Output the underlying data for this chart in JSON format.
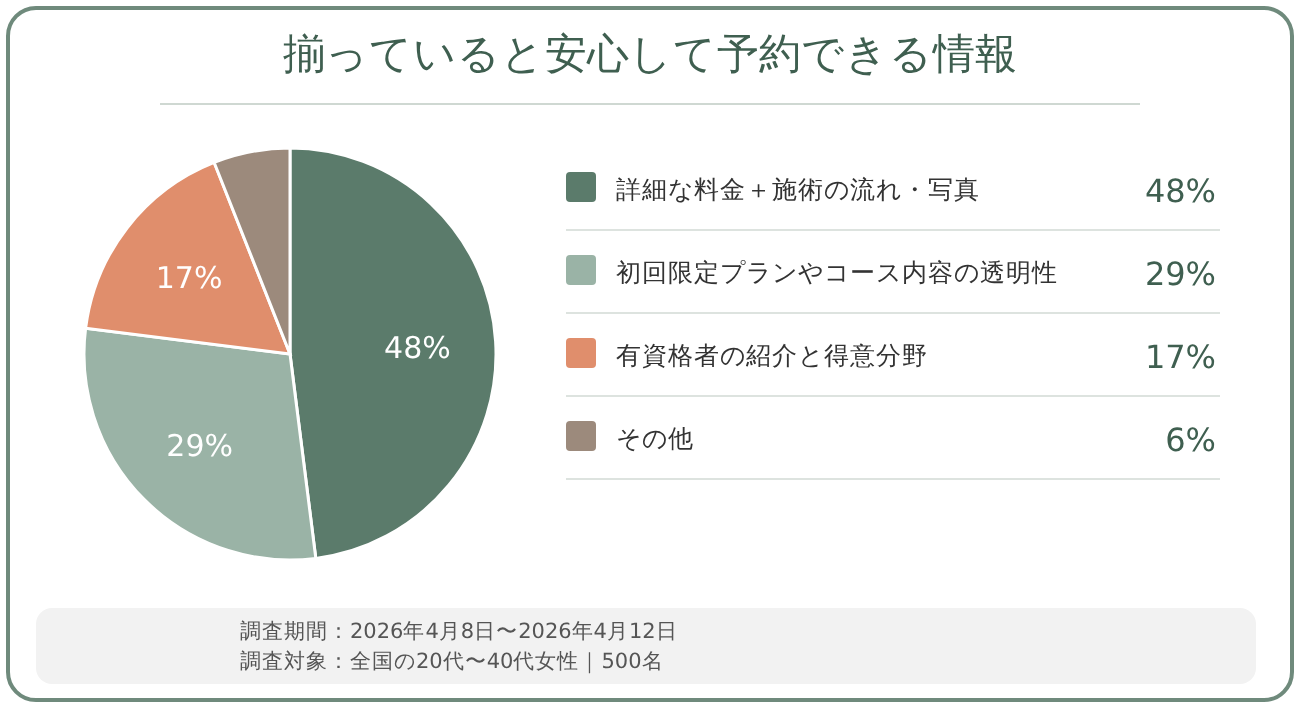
{
  "chart_data": {
    "type": "pie",
    "title": "揃っていると安心して予約できる情報",
    "categories": [
      "詳細な料金＋施術の流れ・写真",
      "初回限定プランやコース内容の透明性",
      "有資格者の紹介と得意分野",
      "その他"
    ],
    "values": [
      48,
      29,
      17,
      6
    ],
    "colors": [
      "#5b7b6b",
      "#9ab3a6",
      "#e08e6c",
      "#9c8a7c"
    ],
    "value_labels": [
      "48%",
      "29%",
      "17%",
      "6%"
    ],
    "legend": "right",
    "annotations": [
      "調査期間：2026年4月8日〜2026年4月12日",
      "調査対象：全国の20代〜40代女性｜500名"
    ]
  }
}
